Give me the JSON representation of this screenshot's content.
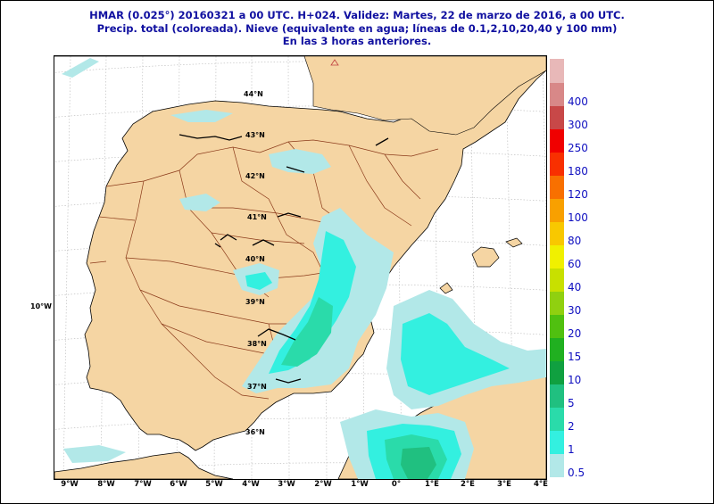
{
  "header": {
    "line1": "HMAR (0.025°) 20160321 a 00 UTC.  H+024. Validez: Martes, 22 de marzo de 2016,  a  00 UTC.",
    "line2": "Precip. total (coloreada). Nieve (equivalente en agua; líneas de 0.1,2,10,20,40 y 100 mm)",
    "line3": "En las 3 horas anteriores."
  },
  "map": {
    "land_color": "#f5d5a3",
    "sea_color": "#ffffff",
    "border_color": "#8b3a1a",
    "lat_labels": [
      "44°N",
      "43°N",
      "42°N",
      "41°N",
      "40°N",
      "39°N",
      "38°N",
      "37°N",
      "36°N"
    ],
    "lon_labels": [
      "9°W",
      "8°W",
      "7°W",
      "6°W",
      "5°W",
      "4°W",
      "3°W",
      "2°W",
      "1°W",
      "0°",
      "1°E",
      "2°E",
      "3°E",
      "4°E"
    ],
    "left_label": "10°W"
  },
  "legend": {
    "levels": [
      "0.5",
      "1",
      "2",
      "5",
      "10",
      "15",
      "20",
      "30",
      "40",
      "60",
      "80",
      "100",
      "120",
      "180",
      "250",
      "300",
      "400"
    ],
    "colors": [
      "#b2e8e8",
      "#33f0e0",
      "#2adbaa",
      "#20c080",
      "#10a040",
      "#20b020",
      "#50c010",
      "#90d010",
      "#c8e000",
      "#f0f000",
      "#f8c800",
      "#f8a000",
      "#f87000",
      "#f83000",
      "#f00000",
      "#c84848",
      "#d88888",
      "#e8b8b8"
    ]
  }
}
